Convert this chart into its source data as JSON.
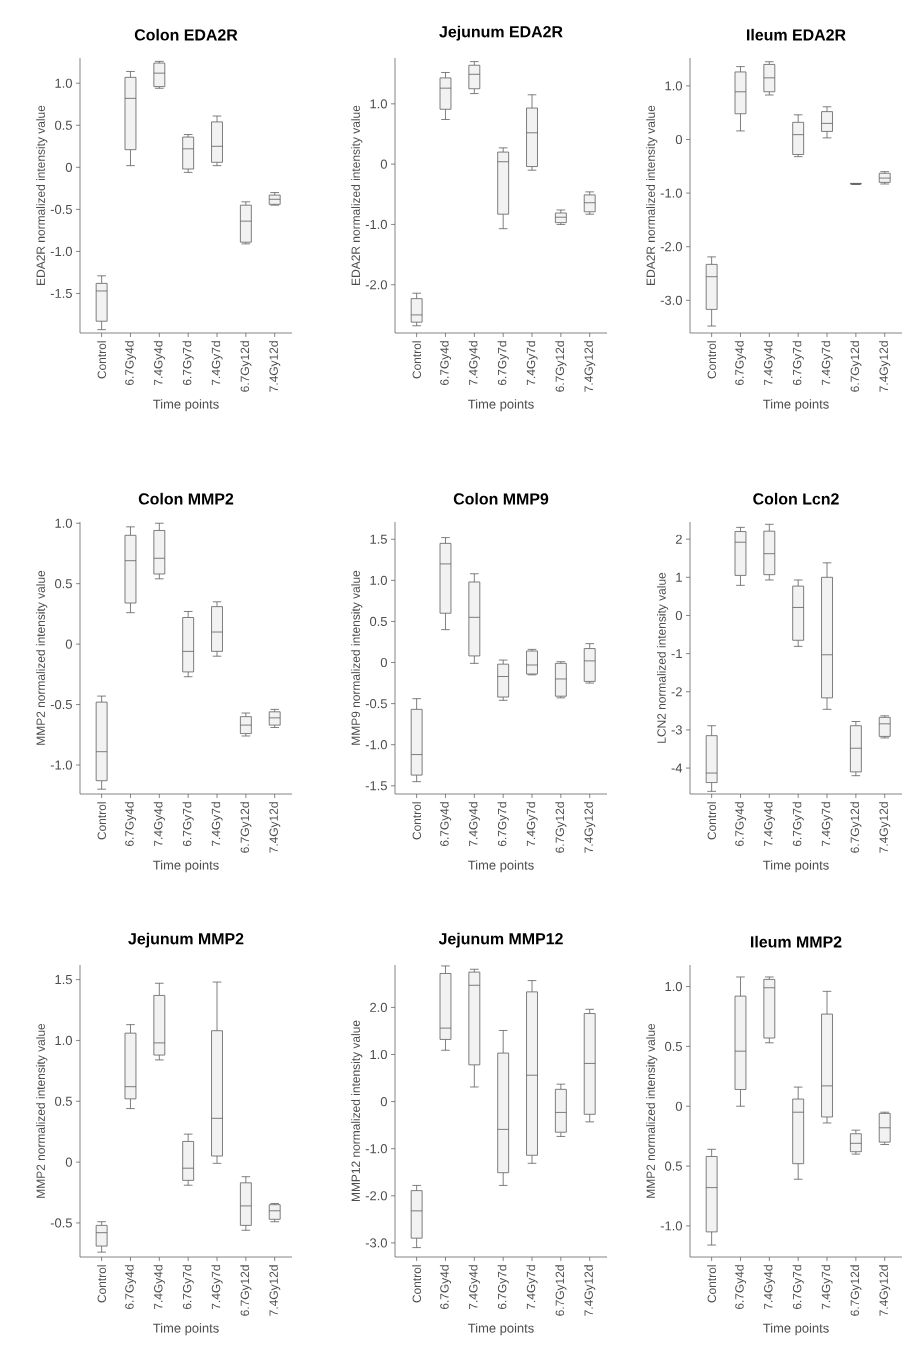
{
  "chart_data": [
    {
      "type": "box",
      "title": "Colon EDA2R",
      "xlabel": "Time points",
      "ylabel": "EDA2R normalized intensity value",
      "categories": [
        "Control",
        "6.7Gy4d",
        "7.4Gy4d",
        "6.7Gy7d",
        "7.4Gy7d",
        "6.7Gy12d",
        "7.4Gy12d"
      ],
      "ylim": [
        -1.97,
        1.3
      ],
      "yticks": [
        {
          "value": 1,
          "label": "1.0"
        },
        0.5,
        0,
        -0.5,
        {
          "value": -1,
          "label": "-1.0"
        },
        -1.5
      ],
      "series": [
        {
          "color": "#5f5f5f",
          "boxes": [
            {
              "low": -1.93,
              "q1": -1.83,
              "median": -1.47,
              "q3": -1.38,
              "high": -1.29
            },
            {
              "low": 0.02,
              "q1": 0.21,
              "median": 0.82,
              "q3": 1.07,
              "high": 1.14
            },
            {
              "low": 0.94,
              "q1": 0.96,
              "median": 1.12,
              "q3": 1.24,
              "high": 1.26
            },
            {
              "low": -0.06,
              "q1": -0.02,
              "median": 0.22,
              "q3": 0.36,
              "high": 0.39
            },
            {
              "low": 0.02,
              "q1": 0.06,
              "median": 0.25,
              "q3": 0.54,
              "high": 0.61
            },
            {
              "low": -0.91,
              "q1": -0.89,
              "median": -0.64,
              "q3": -0.45,
              "high": -0.41
            },
            {
              "low": -0.45,
              "q1": -0.44,
              "median": -0.38,
              "q3": -0.33,
              "high": -0.3
            }
          ]
        }
      ]
    },
    {
      "type": "box",
      "title": "Jejunum EDA2R",
      "xlabel": "Time points",
      "ylabel": "EDA2R normalized intensity value",
      "categories": [
        "Control",
        "6.7Gy4d",
        "7.4Gy4d",
        "6.7Gy7d",
        "7.4Gy7d",
        "6.7Gy12d",
        "7.4Gy12d"
      ],
      "ylim": [
        -2.8,
        1.76
      ],
      "yticks": [
        {
          "value": 1,
          "label": "1.0"
        },
        0,
        {
          "value": -1,
          "label": "-1.0"
        },
        {
          "value": -2,
          "label": "-2.0"
        }
      ],
      "series": [
        {
          "color": "#5f5f5f",
          "boxes": [
            {
              "low": -2.68,
              "q1": -2.62,
              "median": -2.5,
              "q3": -2.23,
              "high": -2.14
            },
            {
              "low": 0.74,
              "q1": 0.91,
              "median": 1.26,
              "q3": 1.43,
              "high": 1.52
            },
            {
              "low": 1.17,
              "q1": 1.25,
              "median": 1.49,
              "q3": 1.64,
              "high": 1.7
            },
            {
              "low": -1.07,
              "q1": -0.83,
              "median": 0.04,
              "q3": 0.2,
              "high": 0.27
            },
            {
              "low": -0.1,
              "q1": -0.04,
              "median": 0.52,
              "q3": 0.93,
              "high": 1.15
            },
            {
              "low": -1.0,
              "q1": -0.97,
              "median": -0.88,
              "q3": -0.81,
              "high": -0.76
            },
            {
              "low": -0.83,
              "q1": -0.79,
              "median": -0.64,
              "q3": -0.51,
              "high": -0.46
            }
          ]
        }
      ]
    },
    {
      "type": "box",
      "title": "Ileum EDA2R",
      "xlabel": "Time points",
      "ylabel": "EDA2R normalized intensity value",
      "categories": [
        "Control",
        "6.7Gy4d",
        "7.4Gy4d",
        "6.7Gy7d",
        "7.4Gy7d",
        "6.7Gy12d",
        "7.4Gy12d"
      ],
      "ylim": [
        -3.61,
        1.52
      ],
      "yticks": [
        {
          "value": 1,
          "label": "1.0"
        },
        0,
        {
          "value": -1,
          "label": "-1.0"
        },
        {
          "value": -2,
          "label": "-2.0"
        },
        {
          "value": -3,
          "label": "-3.0"
        }
      ],
      "series": [
        {
          "color": "#5f5f5f",
          "boxes": [
            {
              "low": -3.48,
              "q1": -3.17,
              "median": -2.56,
              "q3": -2.33,
              "high": -2.19
            },
            {
              "low": 0.16,
              "q1": 0.48,
              "median": 0.89,
              "q3": 1.26,
              "high": 1.36
            },
            {
              "low": 0.83,
              "q1": 0.89,
              "median": 1.15,
              "q3": 1.4,
              "high": 1.45
            },
            {
              "low": -0.32,
              "q1": -0.28,
              "median": 0.09,
              "q3": 0.32,
              "high": 0.46
            },
            {
              "low": 0.03,
              "q1": 0.15,
              "median": 0.3,
              "q3": 0.52,
              "high": 0.61
            },
            {
              "low": -0.84,
              "q1": -0.83,
              "median": -0.83,
              "q3": -0.82,
              "high": -0.82
            },
            {
              "low": -0.83,
              "q1": -0.8,
              "median": -0.72,
              "q3": -0.63,
              "high": -0.6
            }
          ]
        }
      ]
    },
    {
      "type": "box",
      "title": "Colon MMP2",
      "xlabel": "Time points",
      "ylabel": "MMP2 normalized intensity value",
      "categories": [
        "Control",
        "6.7Gy4d",
        "7.4Gy4d",
        "6.7Gy7d",
        "7.4Gy7d",
        "6.7Gy12d",
        "7.4Gy12d"
      ],
      "ylim": [
        -1.24,
        1.01
      ],
      "yticks": [
        {
          "value": 1,
          "label": "1.0"
        },
        0.5,
        0,
        -0.5,
        {
          "value": -1,
          "label": "-1.0"
        }
      ],
      "series": [
        {
          "color": "#5f5f5f",
          "boxes": [
            {
              "low": -1.2,
              "q1": -1.13,
              "median": -0.89,
              "q3": -0.48,
              "high": -0.43
            },
            {
              "low": 0.26,
              "q1": 0.34,
              "median": 0.69,
              "q3": 0.9,
              "high": 0.97
            },
            {
              "low": 0.54,
              "q1": 0.58,
              "median": 0.71,
              "q3": 0.94,
              "high": 1.0
            },
            {
              "low": -0.27,
              "q1": -0.23,
              "median": -0.06,
              "q3": 0.22,
              "high": 0.27
            },
            {
              "low": -0.1,
              "q1": -0.06,
              "median": 0.1,
              "q3": 0.31,
              "high": 0.35
            },
            {
              "low": -0.76,
              "q1": -0.74,
              "median": -0.67,
              "q3": -0.6,
              "high": -0.57
            },
            {
              "low": -0.69,
              "q1": -0.67,
              "median": -0.61,
              "q3": -0.56,
              "high": -0.54
            }
          ]
        }
      ]
    },
    {
      "type": "box",
      "title": "Colon MMP9",
      "xlabel": "Time points",
      "ylabel": "MMP9 normalized intensity value",
      "categories": [
        "Control",
        "6.7Gy4d",
        "7.4Gy4d",
        "6.7Gy7d",
        "7.4Gy7d",
        "6.7Gy12d",
        "7.4Gy12d"
      ],
      "ylim": [
        -1.6,
        1.71
      ],
      "yticks": [
        1.5,
        {
          "value": 1,
          "label": "1.0"
        },
        0.5,
        0,
        -0.5,
        {
          "value": -1,
          "label": "-1.0"
        },
        -1.5
      ],
      "series": [
        {
          "color": "#5f5f5f",
          "boxes": [
            {
              "low": -1.45,
              "q1": -1.37,
              "median": -1.12,
              "q3": -0.57,
              "high": -0.44
            },
            {
              "low": 0.4,
              "q1": 0.6,
              "median": 1.2,
              "q3": 1.45,
              "high": 1.52
            },
            {
              "low": -0.01,
              "q1": 0.08,
              "median": 0.55,
              "q3": 0.98,
              "high": 1.08
            },
            {
              "low": -0.46,
              "q1": -0.42,
              "median": -0.17,
              "q3": -0.02,
              "high": 0.03
            },
            {
              "low": -0.15,
              "q1": -0.14,
              "median": -0.03,
              "q3": 0.14,
              "high": 0.16
            },
            {
              "low": -0.43,
              "q1": -0.41,
              "median": -0.2,
              "q3": -0.01,
              "high": 0.01
            },
            {
              "low": -0.25,
              "q1": -0.23,
              "median": 0.02,
              "q3": 0.17,
              "high": 0.23
            }
          ]
        }
      ]
    },
    {
      "type": "box",
      "title": "Colon Lcn2",
      "xlabel": "Time points",
      "ylabel": "LCN2 normalized intensity value",
      "categories": [
        "Control",
        "6.7Gy4d",
        "7.4Gy4d",
        "6.7Gy7d",
        "7.4Gy7d",
        "6.7Gy12d",
        "7.4Gy12d"
      ],
      "ylim": [
        -4.68,
        2.45
      ],
      "yticks": [
        2,
        1,
        0,
        -1,
        -2,
        -3,
        -4
      ],
      "series": [
        {
          "color": "#5f5f5f",
          "boxes": [
            {
              "low": -4.61,
              "q1": -4.38,
              "median": -4.13,
              "q3": -3.15,
              "high": -2.89
            },
            {
              "low": 0.79,
              "q1": 1.05,
              "median": 1.92,
              "q3": 2.2,
              "high": 2.31
            },
            {
              "low": 0.93,
              "q1": 1.07,
              "median": 1.62,
              "q3": 2.21,
              "high": 2.39
            },
            {
              "low": -0.81,
              "q1": -0.65,
              "median": 0.21,
              "q3": 0.77,
              "high": 0.93
            },
            {
              "low": -2.46,
              "q1": -2.16,
              "median": -1.03,
              "q3": 1.0,
              "high": 1.38
            },
            {
              "low": -4.2,
              "q1": -4.1,
              "median": -3.48,
              "q3": -2.89,
              "high": -2.78
            },
            {
              "low": -3.21,
              "q1": -3.17,
              "median": -2.84,
              "q3": -2.67,
              "high": -2.63
            }
          ]
        }
      ]
    },
    {
      "type": "box",
      "title": "Jejunum MMP2",
      "xlabel": "Time points",
      "ylabel": "MMP2 normalized intensity value",
      "categories": [
        "Control",
        "6.7Gy4d",
        "7.4Gy4d",
        "6.7Gy7d",
        "7.4Gy7d",
        "6.7Gy12d",
        "7.4Gy12d"
      ],
      "ylim": [
        -0.78,
        1.62
      ],
      "yticks": [
        1.5,
        {
          "value": 1,
          "label": "1.0"
        },
        0.5,
        0,
        -0.5
      ],
      "series": [
        {
          "color": "#5f5f5f",
          "boxes": [
            {
              "low": -0.74,
              "q1": -0.69,
              "median": -0.58,
              "q3": -0.52,
              "high": -0.49
            },
            {
              "low": 0.44,
              "q1": 0.52,
              "median": 0.62,
              "q3": 1.06,
              "high": 1.13
            },
            {
              "low": 0.84,
              "q1": 0.88,
              "median": 0.98,
              "q3": 1.37,
              "high": 1.47
            },
            {
              "low": -0.19,
              "q1": -0.15,
              "median": -0.05,
              "q3": 0.17,
              "high": 0.23
            },
            {
              "low": -0.01,
              "q1": 0.05,
              "median": 0.36,
              "q3": 1.08,
              "high": 1.48
            },
            {
              "low": -0.56,
              "q1": -0.52,
              "median": -0.36,
              "q3": -0.17,
              "high": -0.12
            },
            {
              "low": -0.49,
              "q1": -0.47,
              "median": -0.4,
              "q3": -0.35,
              "high": -0.34
            }
          ]
        }
      ]
    },
    {
      "type": "box",
      "title": "Jejunum MMP12",
      "xlabel": "Time points",
      "ylabel": "MMP12 normalized intensity value",
      "categories": [
        "Control",
        "6.7Gy4d",
        "7.4Gy4d",
        "6.7Gy7d",
        "7.4Gy7d",
        "6.7Gy12d",
        "7.4Gy12d"
      ],
      "ylim": [
        -3.3,
        2.9
      ],
      "yticks": [
        {
          "value": 2,
          "label": "2.0"
        },
        {
          "value": 1,
          "label": "1.0"
        },
        0,
        {
          "value": -1,
          "label": "-1.0"
        },
        {
          "value": -2,
          "label": "-2.0"
        },
        {
          "value": -3,
          "label": "-3.0"
        }
      ],
      "series": [
        {
          "color": "#5f5f5f",
          "boxes": [
            {
              "low": -3.1,
              "q1": -2.9,
              "median": -2.32,
              "q3": -1.89,
              "high": -1.78
            },
            {
              "low": 1.09,
              "q1": 1.32,
              "median": 1.56,
              "q3": 2.72,
              "high": 2.88
            },
            {
              "low": 0.31,
              "q1": 0.78,
              "median": 2.47,
              "q3": 2.75,
              "high": 2.81
            },
            {
              "low": -1.78,
              "q1": -1.51,
              "median": -0.59,
              "q3": 1.03,
              "high": 1.51
            },
            {
              "low": -1.31,
              "q1": -1.14,
              "median": 0.56,
              "q3": 2.33,
              "high": 2.57
            },
            {
              "low": -0.74,
              "q1": -0.65,
              "median": -0.23,
              "q3": 0.26,
              "high": 0.37
            },
            {
              "low": -0.43,
              "q1": -0.27,
              "median": 0.81,
              "q3": 1.87,
              "high": 1.96
            }
          ]
        }
      ]
    },
    {
      "type": "box",
      "title": "Ileum MMP2",
      "xlabel": "Time points",
      "ylabel": "MMP2 normalized intensity value",
      "categories": [
        "Control",
        "6.7Gy4d",
        "7.4Gy4d",
        "6.7Gy7d",
        "7.4Gy7d",
        "6.7Gy12d",
        "7.4Gy12d"
      ],
      "ylim": [
        -1.26,
        1.18
      ],
      "yticks": [
        {
          "value": 1,
          "label": "1.0"
        },
        0.5,
        0,
        {
          "value": -0.5,
          "label": "0.5"
        },
        {
          "value": -1,
          "label": "-1.0"
        }
      ],
      "series": [
        {
          "color": "#5f5f5f",
          "boxes": [
            {
              "low": -1.16,
              "q1": -1.05,
              "median": -0.68,
              "q3": -0.42,
              "high": -0.36
            },
            {
              "low": 0.0,
              "q1": 0.14,
              "median": 0.46,
              "q3": 0.92,
              "high": 1.08
            },
            {
              "low": 0.53,
              "q1": 0.57,
              "median": 0.99,
              "q3": 1.06,
              "high": 1.08
            },
            {
              "low": -0.61,
              "q1": -0.48,
              "median": -0.05,
              "q3": 0.06,
              "high": 0.16
            },
            {
              "low": -0.14,
              "q1": -0.09,
              "median": 0.17,
              "q3": 0.77,
              "high": 0.96
            },
            {
              "low": -0.4,
              "q1": -0.38,
              "median": -0.31,
              "q3": -0.23,
              "high": -0.2
            },
            {
              "low": -0.32,
              "q1": -0.3,
              "median": -0.18,
              "q3": -0.06,
              "high": -0.05
            }
          ]
        }
      ]
    }
  ]
}
